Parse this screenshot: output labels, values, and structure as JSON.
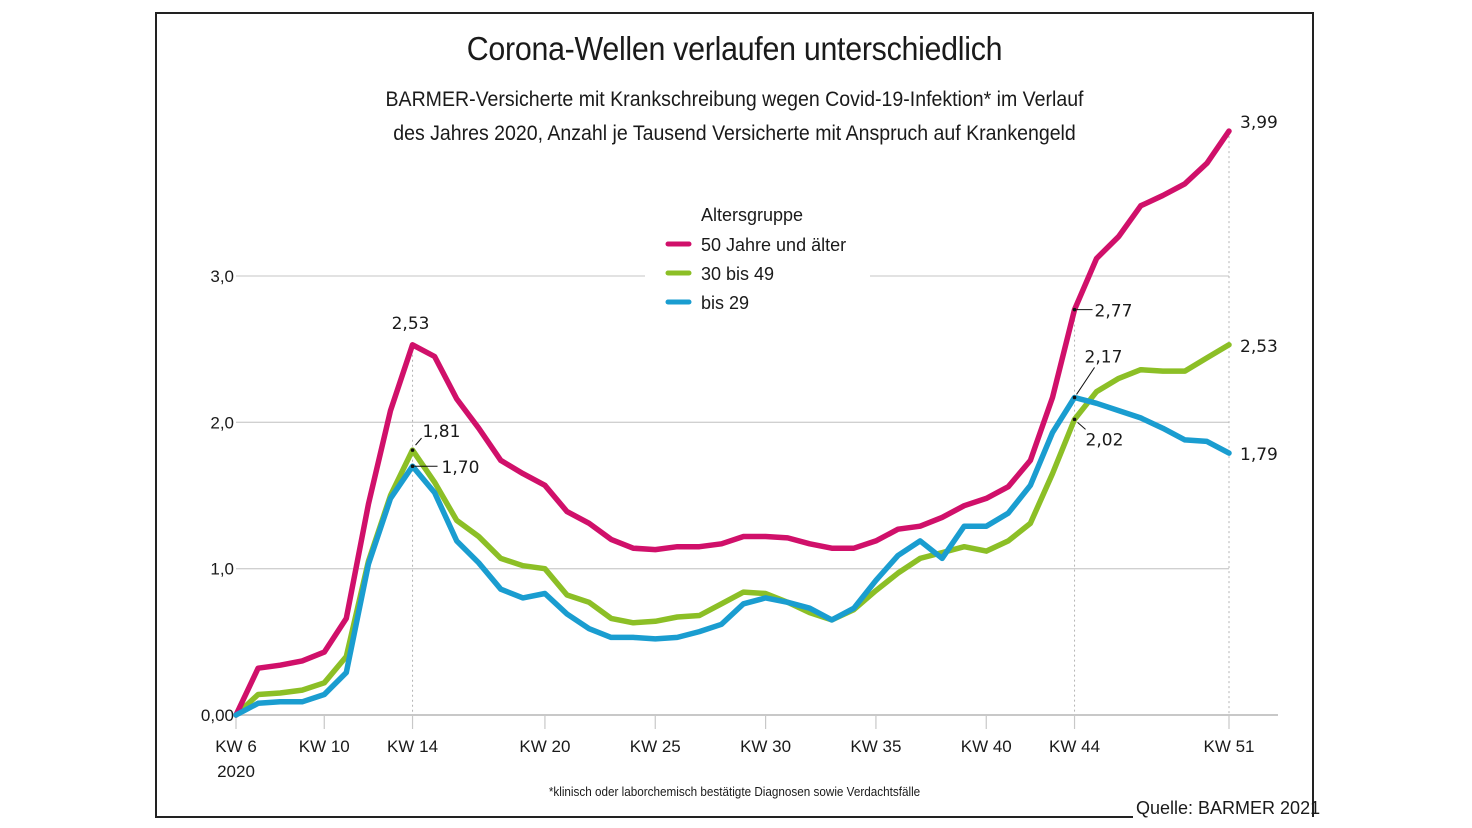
{
  "header": {
    "title": "Corona-Wellen verlaufen unterschiedlich",
    "subtitle_line1": "BARMER-Versicherte mit Krankschreibung wegen Covid-19-Infektion* im Verlauf",
    "subtitle_line2": "des Jahres 2020, Anzahl je Tausend Versicherte mit Anspruch auf Krankengeld"
  },
  "footer": {
    "footnote": "*klinisch oder laborchemisch bestätigte Diagnosen sowie Verdachtsfälle",
    "source": "Quelle: BARMER 2021"
  },
  "chart_data": {
    "type": "line",
    "title": "Corona-Wellen verlaufen unterschiedlich",
    "xlabel": "",
    "ylabel": "",
    "x": [
      6,
      7,
      8,
      9,
      10,
      11,
      12,
      13,
      14,
      15,
      16,
      17,
      18,
      19,
      20,
      21,
      22,
      23,
      24,
      25,
      26,
      27,
      28,
      29,
      30,
      31,
      32,
      33,
      34,
      35,
      36,
      37,
      38,
      39,
      40,
      41,
      42,
      43,
      44,
      45,
      46,
      47,
      48,
      49,
      50,
      51
    ],
    "xlim": [
      6,
      51
    ],
    "ylim": [
      0,
      3.0
    ],
    "grid": true,
    "x_ticks": [
      {
        "week": 6,
        "label": "KW 6",
        "sublabel": "2020"
      },
      {
        "week": 10,
        "label": "KW 10"
      },
      {
        "week": 14,
        "label": "KW 14"
      },
      {
        "week": 20,
        "label": "KW 20"
      },
      {
        "week": 25,
        "label": "KW 25"
      },
      {
        "week": 30,
        "label": "KW 30"
      },
      {
        "week": 35,
        "label": "KW 35"
      },
      {
        "week": 40,
        "label": "KW 40"
      },
      {
        "week": 44,
        "label": "KW 44"
      },
      {
        "week": 51,
        "label": "KW 51"
      }
    ],
    "y_ticks": [
      {
        "value": 0,
        "label": "0,00"
      },
      {
        "value": 1,
        "label": "1,0"
      },
      {
        "value": 2,
        "label": "2,0"
      },
      {
        "value": 3,
        "label": "3,0"
      }
    ],
    "reference_weeks": [
      14,
      44,
      51
    ],
    "legend": {
      "title": "Altersgruppe",
      "position": "top-center"
    },
    "series": [
      {
        "name": "50 Jahre und älter",
        "color": "#d0106a",
        "values": [
          0.0,
          0.32,
          0.34,
          0.37,
          0.43,
          0.66,
          1.44,
          2.08,
          2.53,
          2.45,
          2.16,
          1.96,
          1.74,
          1.65,
          1.57,
          1.39,
          1.31,
          1.2,
          1.14,
          1.13,
          1.15,
          1.15,
          1.17,
          1.22,
          1.22,
          1.21,
          1.17,
          1.14,
          1.14,
          1.19,
          1.27,
          1.29,
          1.35,
          1.43,
          1.48,
          1.56,
          1.74,
          2.17,
          2.77,
          3.12,
          3.27,
          3.48,
          3.55,
          3.63,
          3.77,
          3.99
        ]
      },
      {
        "name": "30 bis 49",
        "color": "#8cbf26",
        "values": [
          0.0,
          0.14,
          0.15,
          0.17,
          0.22,
          0.4,
          1.05,
          1.5,
          1.81,
          1.59,
          1.33,
          1.22,
          1.07,
          1.02,
          1.0,
          0.82,
          0.77,
          0.66,
          0.63,
          0.64,
          0.67,
          0.68,
          0.76,
          0.84,
          0.83,
          0.77,
          0.7,
          0.65,
          0.72,
          0.85,
          0.97,
          1.07,
          1.11,
          1.15,
          1.12,
          1.19,
          1.31,
          1.65,
          2.02,
          2.21,
          2.3,
          2.36,
          2.35,
          2.35,
          2.44,
          2.53
        ]
      },
      {
        "name": "bis 29",
        "color": "#1a9dd0",
        "values": [
          0.0,
          0.08,
          0.09,
          0.09,
          0.14,
          0.29,
          1.03,
          1.48,
          1.7,
          1.52,
          1.19,
          1.04,
          0.86,
          0.8,
          0.83,
          0.69,
          0.59,
          0.53,
          0.53,
          0.52,
          0.53,
          0.57,
          0.62,
          0.76,
          0.8,
          0.77,
          0.73,
          0.65,
          0.73,
          0.92,
          1.09,
          1.19,
          1.07,
          1.29,
          1.29,
          1.38,
          1.57,
          1.93,
          2.17,
          2.13,
          2.08,
          2.03,
          1.96,
          1.88,
          1.87,
          1.79
        ]
      }
    ],
    "annotations": [
      {
        "series": 0,
        "week": 14,
        "value": 2.53,
        "label": "2,53",
        "placement": "above"
      },
      {
        "series": 1,
        "week": 14,
        "value": 1.81,
        "label": "1,81",
        "placement": "upper-right"
      },
      {
        "series": 2,
        "week": 14,
        "value": 1.7,
        "label": "1,70",
        "placement": "right"
      },
      {
        "series": 0,
        "week": 44,
        "value": 2.77,
        "label": "2,77",
        "placement": "right"
      },
      {
        "series": 2,
        "week": 44,
        "value": 2.17,
        "label": "2,17",
        "placement": "upper-right"
      },
      {
        "series": 1,
        "week": 44,
        "value": 2.02,
        "label": "2,02",
        "placement": "lower-right"
      },
      {
        "series": 0,
        "week": 51,
        "value": 3.99,
        "label": "3,99",
        "placement": "upper-right"
      },
      {
        "series": 1,
        "week": 51,
        "value": 2.53,
        "label": "2,53",
        "placement": "right"
      },
      {
        "series": 2,
        "week": 51,
        "value": 1.79,
        "label": "1,79",
        "placement": "right"
      }
    ]
  }
}
